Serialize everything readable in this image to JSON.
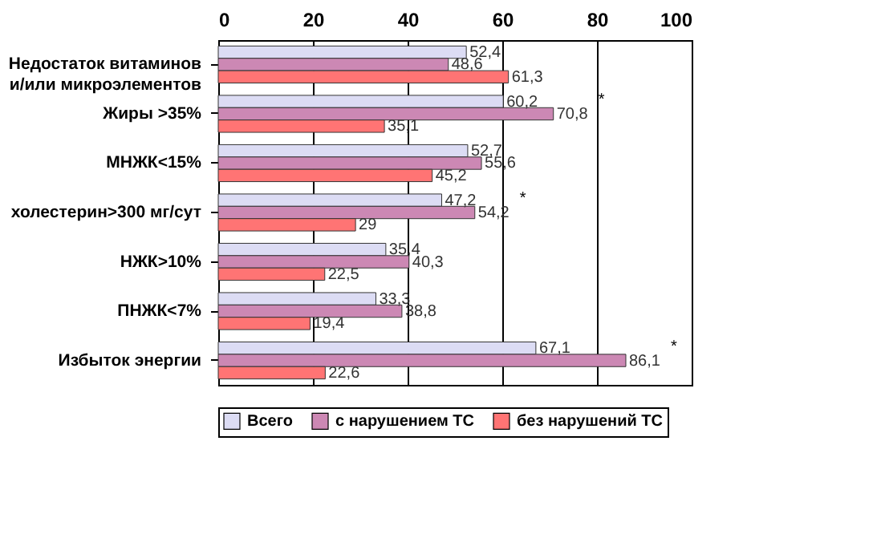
{
  "chart_data": {
    "type": "bar",
    "orientation": "horizontal",
    "categories": [
      "Недостаток витаминов и/или микроэлементов",
      "Жиры >35%",
      "МНЖК<15%",
      "холестерин>300 мг/сут",
      "НЖК>10%",
      "ПНЖК<7%",
      "Избыток энергии"
    ],
    "series": [
      {
        "name": "Всего",
        "color": "#dcdcf4",
        "values": [
          52.4,
          60.2,
          52.7,
          47.2,
          35.4,
          33.3,
          67.1
        ],
        "value_labels": [
          "52,4",
          "60,2",
          "52,7",
          "47,2",
          "35,4",
          "33,3",
          "67,1"
        ]
      },
      {
        "name": "с нарушением ТС",
        "color": "#cc88b4",
        "values": [
          48.6,
          70.8,
          55.6,
          54.2,
          40.3,
          38.8,
          86.1
        ],
        "value_labels": [
          "48,6",
          "70,8",
          "55,6",
          "54,2",
          "40,3",
          "38,8",
          "86,1"
        ]
      },
      {
        "name": "без нарушений ТС",
        "color": "#ff7474",
        "values": [
          61.3,
          35.1,
          45.2,
          29,
          22.5,
          19.4,
          22.6
        ],
        "value_labels": [
          "61,3",
          "35,1",
          "45,2",
          "29",
          "22,5",
          "19,4",
          "22,6"
        ]
      }
    ],
    "xlim": [
      0,
      100
    ],
    "xticks": [
      0,
      20,
      40,
      60,
      80,
      100
    ],
    "grid": "x",
    "legend": "bottom",
    "annotations": [
      {
        "text": "*",
        "x": 70.8,
        "y": "Жиры >35%"
      },
      {
        "text": "*",
        "x": 54.2,
        "y": "холестерин>300 мг/сут"
      },
      {
        "text": "*",
        "x": 86.1,
        "y": "Избыток энергии"
      }
    ]
  }
}
